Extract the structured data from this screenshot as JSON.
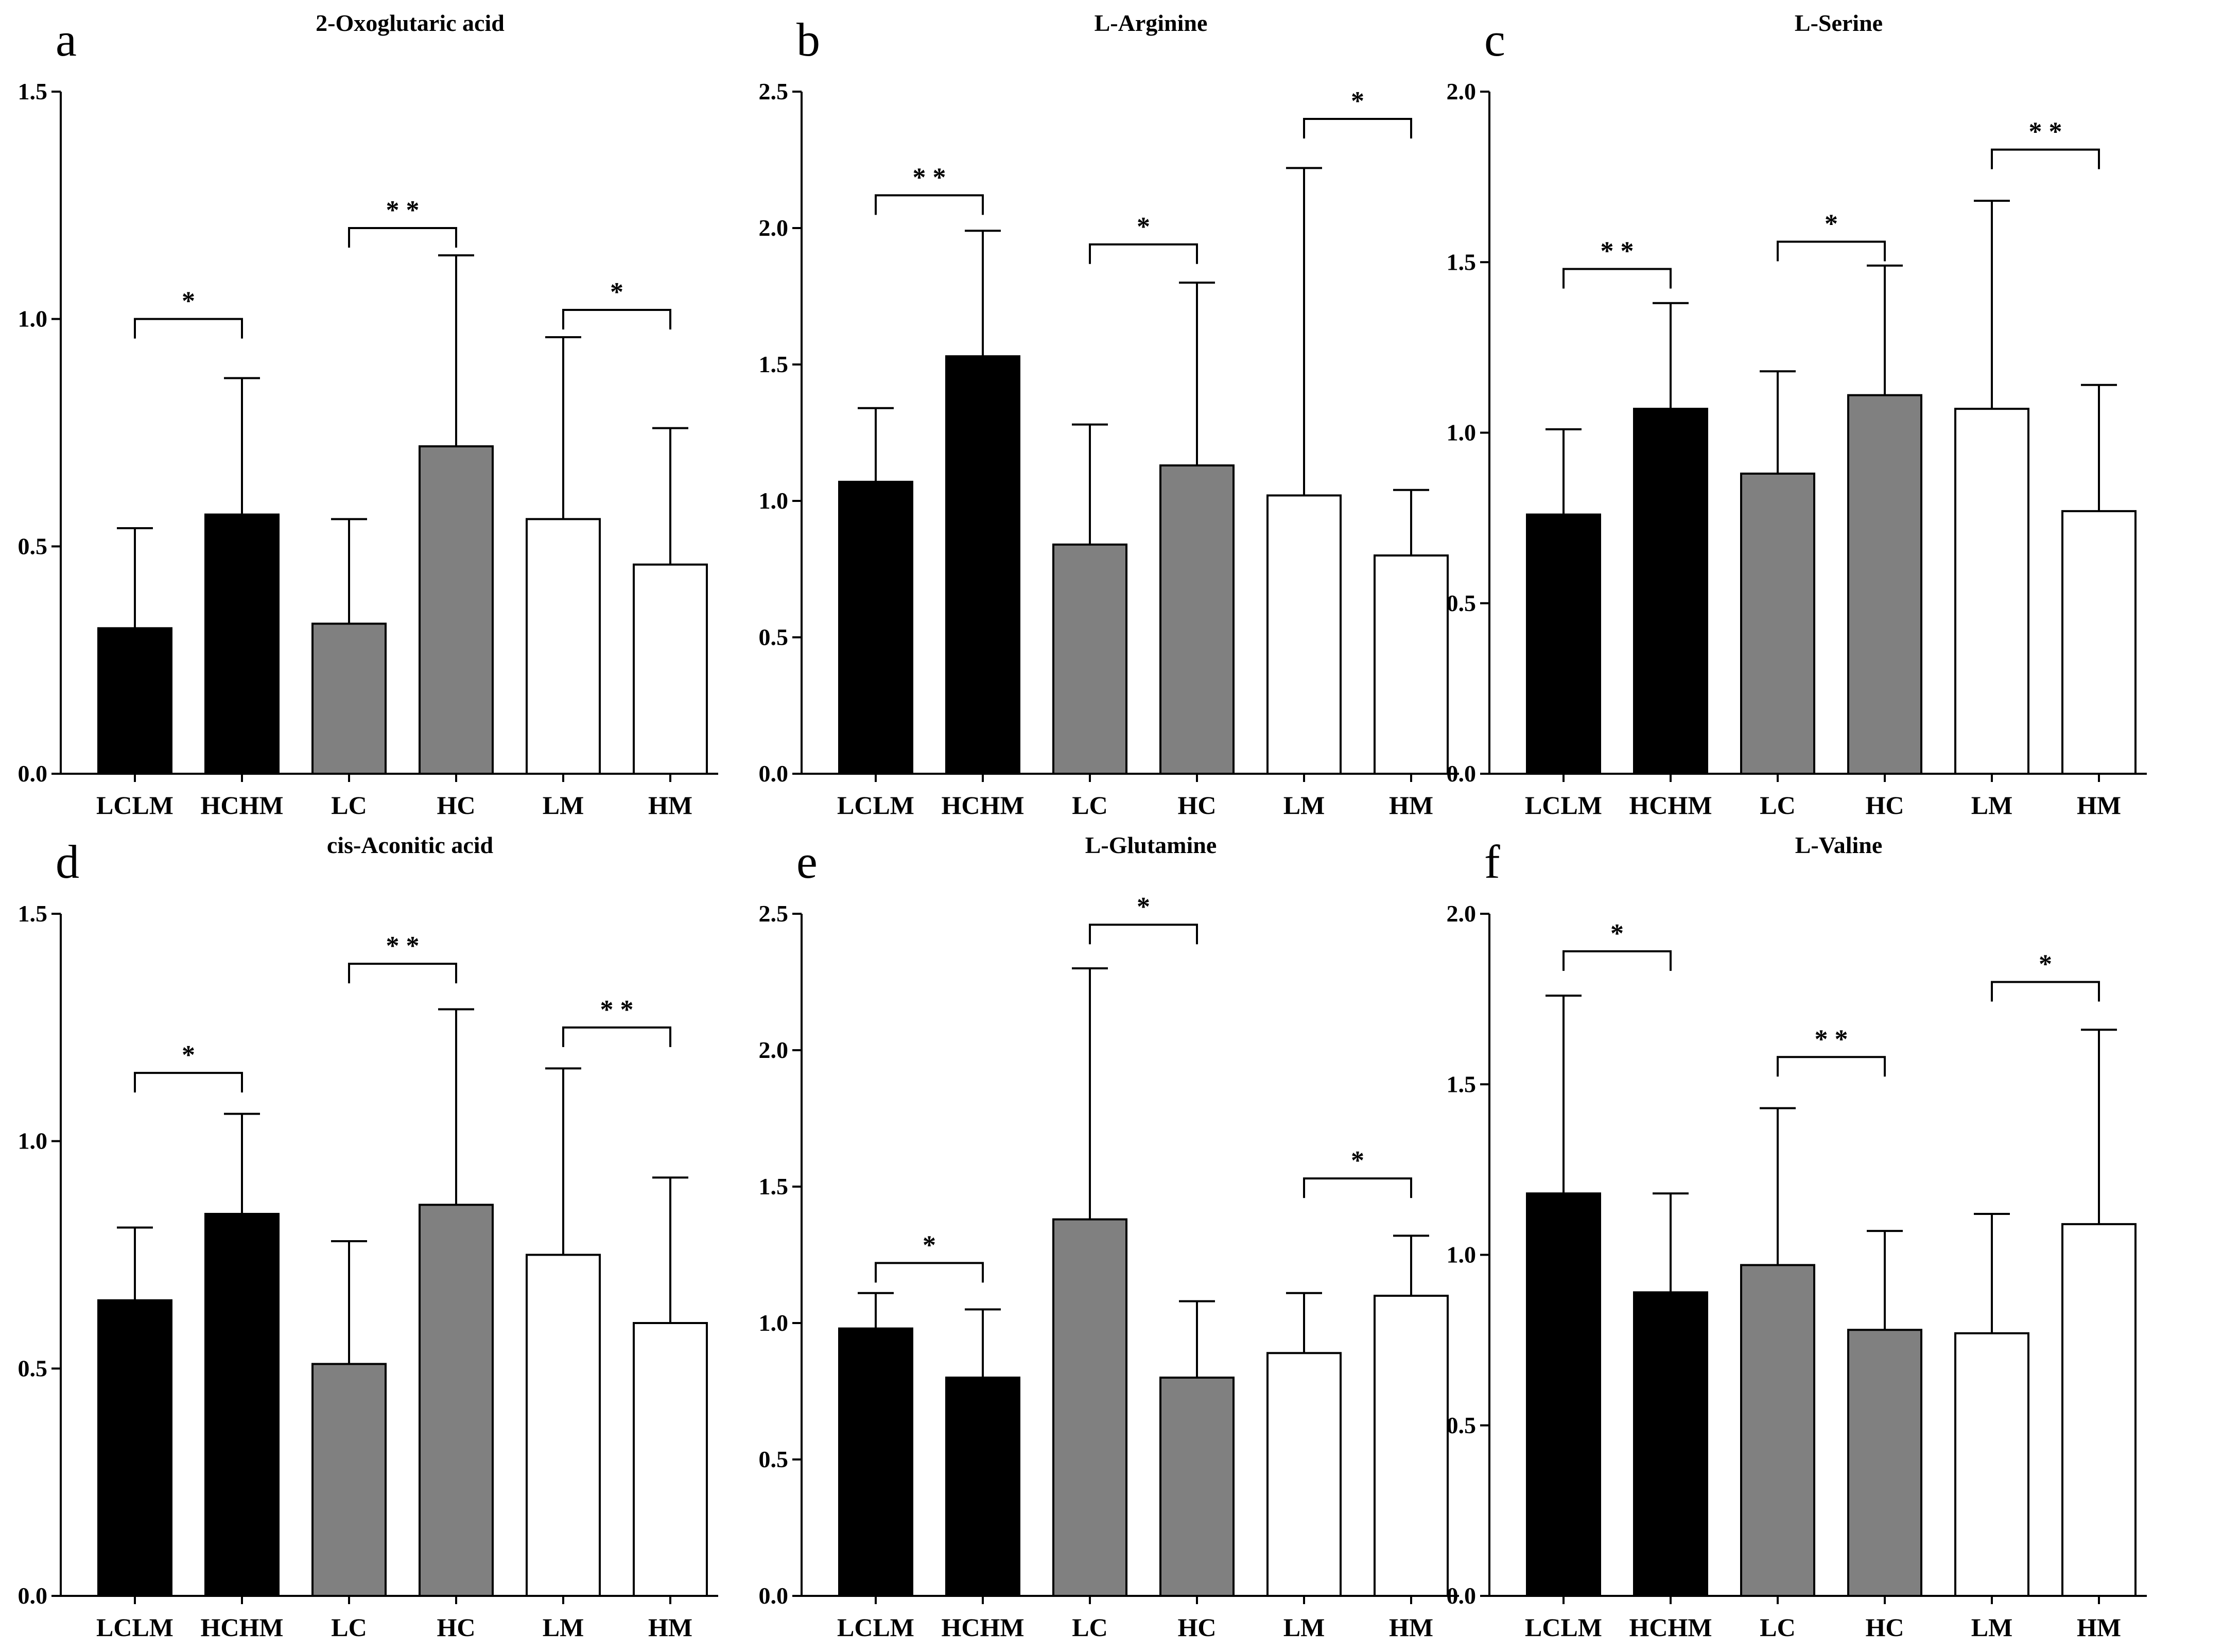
{
  "colors": {
    "lc_lm": "#000000",
    "hc_hm": "#000000",
    "lc": "#808080",
    "hc": "#808080",
    "lm": "#ffffff",
    "hm": "#ffffff",
    "axis": "#000000"
  },
  "chart_data": [
    {
      "type": "bar",
      "panel": "a",
      "title": "2-Oxoglutaric acid",
      "categories": [
        "LCLM",
        "HCHM",
        "LC",
        "HC",
        "LM",
        "HM"
      ],
      "values": [
        0.32,
        0.57,
        0.33,
        0.72,
        0.56,
        0.46
      ],
      "errors": [
        0.22,
        0.3,
        0.23,
        0.42,
        0.4,
        0.3
      ],
      "ylim": [
        0,
        1.5
      ],
      "yticks": [
        0.0,
        0.5,
        1.0,
        1.5
      ],
      "ytick_labels": [
        "0.0",
        "0.5",
        "1.0",
        "1.5"
      ],
      "xlabel": "",
      "ylabel": "",
      "significance": [
        {
          "from": 0,
          "to": 1,
          "label": "*",
          "y": 1.0
        },
        {
          "from": 2,
          "to": 3,
          "label": "* *",
          "y": 1.2
        },
        {
          "from": 4,
          "to": 5,
          "label": "*",
          "y": 1.02
        }
      ]
    },
    {
      "type": "bar",
      "panel": "b",
      "title": "L-Arginine",
      "categories": [
        "LCLM",
        "HCHM",
        "LC",
        "HC",
        "LM",
        "HM"
      ],
      "values": [
        1.07,
        1.53,
        0.84,
        1.13,
        1.02,
        0.8
      ],
      "errors": [
        0.27,
        0.46,
        0.44,
        0.67,
        1.2,
        0.24
      ],
      "ylim": [
        0,
        2.5
      ],
      "yticks": [
        0.0,
        0.5,
        1.0,
        1.5,
        2.0,
        2.5
      ],
      "ytick_labels": [
        "0.0",
        "0.5",
        "1.0",
        "1.5",
        "2.0",
        "2.5"
      ],
      "xlabel": "",
      "ylabel": "",
      "significance": [
        {
          "from": 0,
          "to": 1,
          "label": "* *",
          "y": 2.12
        },
        {
          "from": 2,
          "to": 3,
          "label": "*",
          "y": 1.94
        },
        {
          "from": 4,
          "to": 5,
          "label": "*",
          "y": 2.4
        }
      ]
    },
    {
      "type": "bar",
      "panel": "c",
      "title": "L-Serine",
      "categories": [
        "LCLM",
        "HCHM",
        "LC",
        "HC",
        "LM",
        "HM"
      ],
      "values": [
        0.76,
        1.07,
        0.88,
        1.11,
        1.07,
        0.77
      ],
      "errors": [
        0.25,
        0.31,
        0.3,
        0.38,
        0.61,
        0.37
      ],
      "ylim": [
        0,
        2.0
      ],
      "yticks": [
        0.0,
        0.5,
        1.0,
        1.5,
        2.0
      ],
      "ytick_labels": [
        "0.0",
        "0.5",
        "1.0",
        "1.5",
        "2.0"
      ],
      "xlabel": "",
      "ylabel": "",
      "significance": [
        {
          "from": 0,
          "to": 1,
          "label": "* *",
          "y": 1.48
        },
        {
          "from": 2,
          "to": 3,
          "label": "*",
          "y": 1.56
        },
        {
          "from": 4,
          "to": 5,
          "label": "* *",
          "y": 1.83
        }
      ]
    },
    {
      "type": "bar",
      "panel": "d",
      "title": "cis-Aconitic acid",
      "categories": [
        "LCLM",
        "HCHM",
        "LC",
        "HC",
        "LM",
        "HM"
      ],
      "values": [
        0.65,
        0.84,
        0.51,
        0.86,
        0.75,
        0.6
      ],
      "errors": [
        0.16,
        0.22,
        0.27,
        0.43,
        0.41,
        0.32
      ],
      "ylim": [
        0,
        1.5
      ],
      "yticks": [
        0.0,
        0.5,
        1.0,
        1.5
      ],
      "ytick_labels": [
        "0.0",
        "0.5",
        "1.0",
        "1.5"
      ],
      "xlabel": "",
      "ylabel": "",
      "significance": [
        {
          "from": 0,
          "to": 1,
          "label": "*",
          "y": 1.15
        },
        {
          "from": 2,
          "to": 3,
          "label": "* *",
          "y": 1.39
        },
        {
          "from": 4,
          "to": 5,
          "label": "* *",
          "y": 1.25
        }
      ]
    },
    {
      "type": "bar",
      "panel": "e",
      "title": "L-Glutamine",
      "categories": [
        "LCLM",
        "HCHM",
        "LC",
        "HC",
        "LM",
        "HM"
      ],
      "values": [
        0.98,
        0.8,
        1.38,
        0.8,
        0.89,
        1.1
      ],
      "errors": [
        0.13,
        0.25,
        0.92,
        0.28,
        0.22,
        0.22
      ],
      "ylim": [
        0,
        2.5
      ],
      "yticks": [
        0.0,
        0.5,
        1.0,
        1.5,
        2.0,
        2.5
      ],
      "ytick_labels": [
        "0.0",
        "0.5",
        "1.0",
        "1.5",
        "2.0",
        "2.5"
      ],
      "xlabel": "",
      "ylabel": "",
      "significance": [
        {
          "from": 0,
          "to": 1,
          "label": "*",
          "y": 1.22
        },
        {
          "from": 2,
          "to": 3,
          "label": "*",
          "y": 2.46
        },
        {
          "from": 4,
          "to": 5,
          "label": "*",
          "y": 1.53
        }
      ]
    },
    {
      "type": "bar",
      "panel": "f",
      "title": "L-Valine",
      "categories": [
        "LCLM",
        "HCHM",
        "LC",
        "HC",
        "LM",
        "HM"
      ],
      "values": [
        1.18,
        0.89,
        0.97,
        0.78,
        0.77,
        1.09
      ],
      "errors": [
        0.58,
        0.29,
        0.46,
        0.29,
        0.35,
        0.57
      ],
      "ylim": [
        0,
        2.0
      ],
      "yticks": [
        0.0,
        0.5,
        1.0,
        1.5,
        2.0
      ],
      "ytick_labels": [
        "0.0",
        "0.5",
        "1.0",
        "1.5",
        "2.0"
      ],
      "xlabel": "",
      "ylabel": "",
      "significance": [
        {
          "from": 0,
          "to": 1,
          "label": "*",
          "y": 1.89
        },
        {
          "from": 2,
          "to": 3,
          "label": "* *",
          "y": 1.58
        },
        {
          "from": 4,
          "to": 5,
          "label": "*",
          "y": 1.8
        }
      ]
    }
  ]
}
